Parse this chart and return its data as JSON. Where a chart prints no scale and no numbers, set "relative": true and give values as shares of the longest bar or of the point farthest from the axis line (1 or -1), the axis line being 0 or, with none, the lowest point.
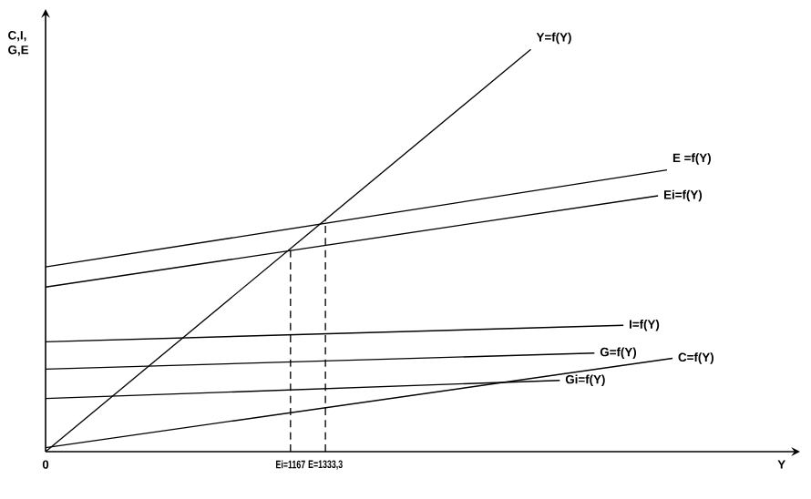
{
  "chart_data": {
    "type": "line",
    "relative": true,
    "xlabel": "Y",
    "ylabel": "C,I, G,E",
    "xlim": [
      0,
      3560
    ],
    "xticks": [
      {
        "value": 0,
        "label": "0"
      },
      {
        "value": 1167,
        "label": "Ei=1167"
      },
      {
        "value": 1333.3,
        "label": "E=1333,3"
      }
    ],
    "ref_lines": [
      {
        "axis": "x",
        "value": 1167,
        "line_style": "dashed"
      },
      {
        "axis": "x",
        "value": 1333.3,
        "line_style": "dashed"
      }
    ],
    "series": [
      {
        "name": "Y=f(Y)",
        "color": "#000000",
        "x": [
          0,
          2312
        ],
        "values": [
          0,
          1
        ]
      },
      {
        "name": "E =f(Y)",
        "color": "#000000",
        "x": [
          0,
          2961
        ],
        "values": [
          0.459,
          0.7
        ]
      },
      {
        "name": "Ei=f(Y)",
        "color": "#000000",
        "x": [
          0,
          2918
        ],
        "values": [
          0.409,
          0.636
        ]
      },
      {
        "name": "I=f(Y)",
        "color": "#000000",
        "x": [
          0,
          2753
        ],
        "values": [
          0.273,
          0.314
        ]
      },
      {
        "name": "G=f(Y)",
        "color": "#000000",
        "x": [
          0,
          2615
        ],
        "values": [
          0.205,
          0.245
        ]
      },
      {
        "name": "Gi=f(Y)",
        "color": "#000000",
        "x": [
          0,
          2450
        ],
        "values": [
          0.132,
          0.177
        ]
      },
      {
        "name": "C=f(Y)",
        "color": "#000000",
        "x": [
          0,
          2987
        ],
        "values": [
          0.01,
          0.232
        ]
      }
    ]
  }
}
